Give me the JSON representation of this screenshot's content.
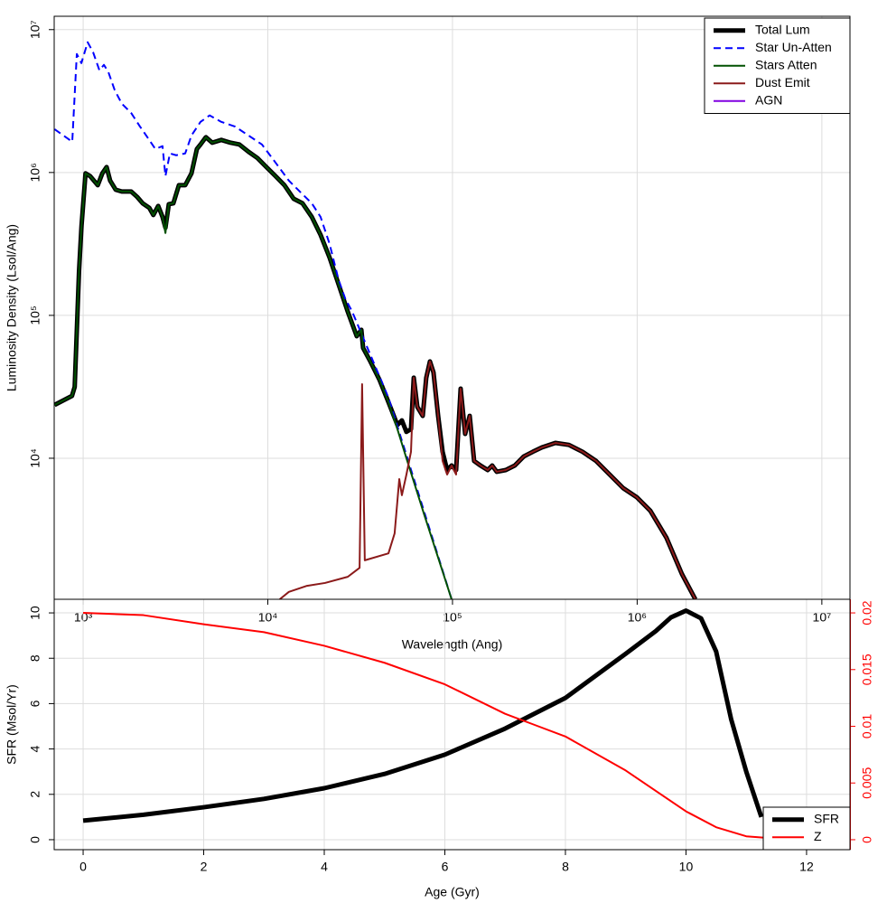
{
  "chart_data": [
    {
      "type": "line",
      "log_x": true,
      "log_y": true,
      "grid": true,
      "legend": "top-right",
      "x_label": "Wavelength (Ang)",
      "y_label": "Luminosity Density (Lsol/Ang)",
      "xlim": [
        697,
        14200000
      ],
      "ylim": [
        1030,
        12400000
      ],
      "xticks": [
        {
          "value": 1000,
          "label": "10³"
        },
        {
          "value": 10000,
          "label": "10⁴"
        },
        {
          "value": 100000,
          "label": "10⁵"
        },
        {
          "value": 1000000,
          "label": "10⁶"
        },
        {
          "value": 10000000,
          "label": "10⁷"
        }
      ],
      "yticks": [
        {
          "value": 10000,
          "label": "10⁴"
        },
        {
          "value": 100000,
          "label": "10⁵"
        },
        {
          "value": 1000000,
          "label": "10⁶"
        },
        {
          "value": 10000000,
          "label": "10⁷"
        }
      ],
      "series": [
        {
          "name": "Total Lum",
          "color": "#000000",
          "style": "thick",
          "x": [
            700,
            870,
            900,
            950,
            980,
            1030,
            1090,
            1200,
            1270,
            1340,
            1400,
            1500,
            1620,
            1820,
            1960,
            2100,
            2280,
            2400,
            2550,
            2690,
            2790,
            2910,
            3080,
            3300,
            3570,
            3860,
            4130,
            4320,
            4620,
            5000,
            5600,
            6270,
            7010,
            7850,
            8790,
            9830,
            11000,
            12300,
            13800,
            15400,
            17300,
            19300,
            21600,
            24200,
            27100,
            30300,
            32100,
            32800,
            35900,
            40200,
            45000,
            50300,
            53200,
            56300,
            59600,
            61700,
            64500,
            69000,
            72100,
            75500,
            78900,
            83600,
            88400,
            93500,
            98900,
            104600,
            110700,
            117100,
            123900,
            131000,
            141800,
            155100,
            164100,
            173600,
            194300,
            217400,
            243300,
            272300,
            304700,
            360700,
            427000,
            506000,
            599200,
            709500,
            839900,
            994500,
            1178000,
            1442000,
            1746000,
            2066000
          ],
          "values": [
            23600,
            27300,
            31600,
            204000,
            424000,
            986000,
            944000,
            815000,
            986000,
            1091000,
            877000,
            758000,
            736000,
            736000,
            675000,
            609000,
            566000,
            504000,
            583000,
            489000,
            411000,
            600000,
            609000,
            815000,
            815000,
            986000,
            1461000,
            1571000,
            1766000,
            1617000,
            1690000,
            1617000,
            1571000,
            1399000,
            1262000,
            1091000,
            944000,
            815000,
            655000,
            609000,
            489000,
            366000,
            254000,
            164000,
            106000,
            71500,
            79200,
            59200,
            47600,
            35500,
            24700,
            17100,
            18400,
            15300,
            16000,
            36600,
            22900,
            19800,
            36600,
            47600,
            39900,
            19800,
            11100,
            8270,
            8890,
            8270,
            30700,
            14800,
            19800,
            9570,
            8890,
            8270,
            8890,
            8040,
            8270,
            8890,
            10300,
            11100,
            11900,
            12800,
            12400,
            11100,
            9570,
            7690,
            6180,
            5340,
            4290,
            2770,
            1550,
            1030
          ]
        },
        {
          "name": "Star Un-Atten",
          "color": "#0000ff",
          "style": "dashed",
          "x": [
            700,
            781,
            873,
            924,
            978,
            1058,
            1132,
            1225,
            1296,
            1370,
            1482,
            1620,
            1816,
            2030,
            2280,
            2460,
            2690,
            2790,
            2950,
            3190,
            3570,
            3860,
            4320,
            4840,
            5600,
            6630,
            7850,
            9290,
            11000,
            13000,
            15400,
            17300,
            19300,
            21600,
            24200,
            26190,
            28650,
            45000,
            98900
          ],
          "values": [
            2010000,
            1817000,
            1641000,
            6750000,
            5830000,
            8160000,
            6950000,
            5190000,
            5670000,
            5040000,
            3770000,
            3030000,
            2620000,
            2100000,
            1690000,
            1460000,
            1530000,
            944000,
            1360000,
            1320000,
            1360000,
            1817000,
            2260000,
            2510000,
            2260000,
            2100000,
            1817000,
            1571000,
            1174000,
            877000,
            705000,
            609000,
            489000,
            316000,
            176000,
            132000,
            106000,
            26500,
            1030
          ]
        },
        {
          "name": "Stars Atten",
          "color": "#005000",
          "style": "solid",
          "x": [
            700,
            870,
            900,
            950,
            980,
            1030,
            1090,
            1200,
            1270,
            1340,
            1400,
            1500,
            1620,
            1820,
            1960,
            2100,
            2280,
            2400,
            2550,
            2690,
            2790,
            2910,
            3080,
            3300,
            3570,
            3860,
            4130,
            4320,
            4620,
            5000,
            5600,
            6270,
            7010,
            7850,
            8790,
            9830,
            11000,
            12300,
            13800,
            15400,
            17300,
            19300,
            21600,
            24200,
            27100,
            30300,
            32100,
            32800,
            35900,
            40200,
            45000,
            50300,
            56300,
            70500,
            98900
          ],
          "values": [
            23600,
            27300,
            31600,
            204000,
            424000,
            986000,
            944000,
            815000,
            986000,
            1091000,
            877000,
            758000,
            736000,
            736000,
            675000,
            609000,
            566000,
            504000,
            583000,
            489000,
            377000,
            600000,
            609000,
            815000,
            815000,
            986000,
            1461000,
            1571000,
            1766000,
            1617000,
            1690000,
            1617000,
            1571000,
            1399000,
            1262000,
            1091000,
            944000,
            815000,
            655000,
            609000,
            489000,
            366000,
            254000,
            164000,
            106000,
            71500,
            79200,
            59200,
            47600,
            35500,
            24700,
            16000,
            10000,
            3980,
            1030
          ]
        },
        {
          "name": "Dust Emit",
          "color": "#8b1a1a",
          "style": "solid",
          "x": [
            11600,
            13000,
            16300,
            20400,
            27100,
            31400,
            32400,
            33500,
            45000,
            48600,
            51500,
            53200,
            56300,
            59600,
            61700,
            64500,
            69000,
            72100,
            75500,
            78900,
            83600,
            88400,
            93500,
            98900,
            104600,
            110700,
            117100,
            123900,
            131000,
            141800,
            155100,
            164100,
            173600,
            194300,
            217400,
            243300,
            272300,
            304700,
            360700,
            427000,
            506000,
            599200,
            709500,
            839900,
            994500,
            1178000,
            1442000,
            1746000,
            2066000
          ],
          "values": [
            1030,
            1160,
            1280,
            1340,
            1480,
            1710,
            33000,
            1930,
            2160,
            2980,
            7150,
            5510,
            7690,
            11100,
            36600,
            22900,
            19800,
            36600,
            47600,
            39900,
            19800,
            9570,
            7690,
            8890,
            7690,
            30700,
            14800,
            19800,
            9570,
            8890,
            8270,
            8890,
            8040,
            8270,
            8890,
            10300,
            11100,
            11900,
            12800,
            12400,
            11100,
            9570,
            7690,
            6180,
            5340,
            4290,
            2770,
            1550,
            1030
          ]
        },
        {
          "name": "AGN",
          "color": "#8000e0",
          "style": "solid",
          "x": [],
          "values": []
        }
      ]
    },
    {
      "type": "line",
      "grid": true,
      "legend": "bottom-right",
      "x_label": "Age (Gyr)",
      "y_label": "SFR (Msol/Yr)",
      "xlim": [
        -0.48,
        12.72
      ],
      "ylim": [
        -0.44,
        10.6
      ],
      "y2lim": [
        -0.00088,
        0.0212
      ],
      "xticks": [
        0,
        2,
        4,
        6,
        8,
        10,
        12
      ],
      "yticks": [
        0,
        2,
        4,
        6,
        8,
        10
      ],
      "y2ticks": [
        0,
        0.005,
        0.01,
        0.015,
        0.02
      ],
      "series": [
        {
          "name": "SFR",
          "color": "#000000",
          "style": "thick",
          "x": [
            0,
            1,
            2,
            3,
            4,
            5,
            6,
            7,
            8,
            9,
            9.5,
            9.75,
            10,
            10.25,
            10.5,
            10.75,
            11,
            11.25
          ],
          "values": [
            0.84,
            1.1,
            1.43,
            1.8,
            2.27,
            2.9,
            3.75,
            4.9,
            6.25,
            8.2,
            9.2,
            9.8,
            10.1,
            9.76,
            8.3,
            5.3,
            3.0,
            1.0
          ]
        },
        {
          "name": "Z",
          "color": "#ff0000",
          "style": "solid",
          "axis": "y2",
          "x": [
            0,
            1,
            2,
            3,
            4,
            5,
            6,
            7,
            7.5,
            8,
            9,
            10,
            10.5,
            11,
            11.5,
            12
          ],
          "values": [
            0.02,
            0.0198,
            0.019,
            0.0183,
            0.0171,
            0.0156,
            0.0137,
            0.0111,
            0.0101,
            0.0091,
            0.0061,
            0.0025,
            0.0011,
            0.0003,
            0.0001,
            0
          ]
        }
      ]
    }
  ]
}
